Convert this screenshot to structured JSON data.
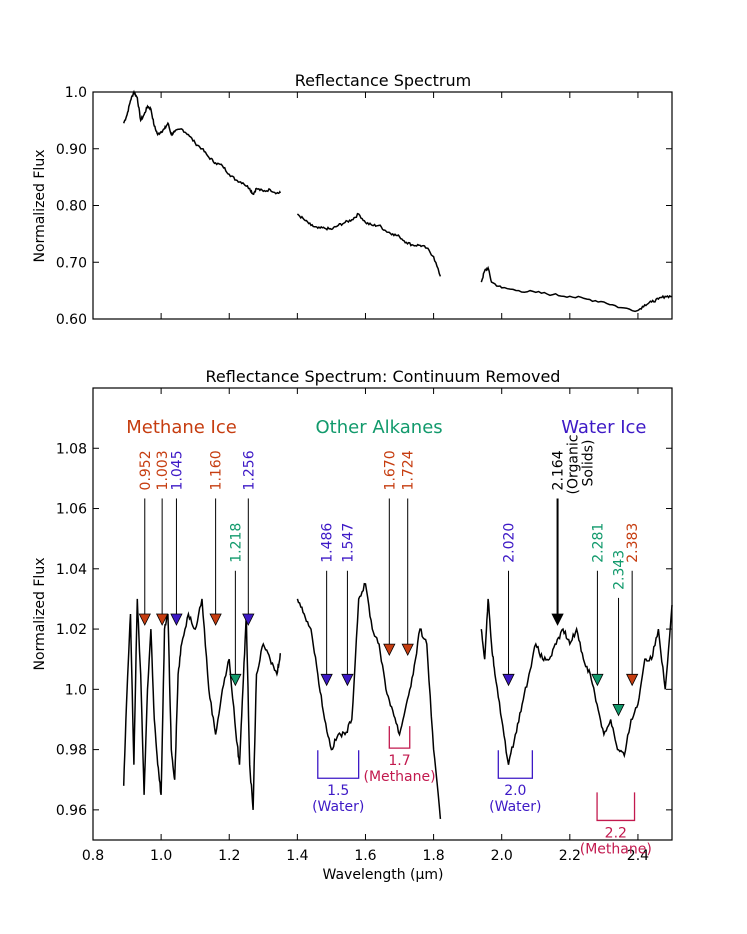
{
  "colors": {
    "methane": "#c63d10",
    "alkane": "#129a6c",
    "water": "#3d19c6",
    "organic": "#000000",
    "methane_band": "#c2194e",
    "line": "#000000"
  },
  "chart_data": [
    {
      "type": "line",
      "title": "Reflectance Spectrum",
      "xlabel": "",
      "ylabel": "Normalized Flux",
      "xlim": [
        0.8,
        2.5
      ],
      "ylim": [
        0.6,
        1.0
      ],
      "yticks": [
        "0.60",
        "0.70",
        "0.80",
        "0.90",
        "1.0"
      ],
      "ytick_values": [
        0.6,
        0.7,
        0.8,
        0.9,
        1.0
      ],
      "series": [
        {
          "name": "segment 1",
          "x": [
            0.89,
            0.9,
            0.91,
            0.92,
            0.93,
            0.94,
            0.95,
            0.96,
            0.97,
            0.98,
            0.99,
            1.0,
            1.01,
            1.02,
            1.03,
            1.04,
            1.06,
            1.08,
            1.1,
            1.12,
            1.14,
            1.16,
            1.18,
            1.2,
            1.22,
            1.24,
            1.26,
            1.27,
            1.28,
            1.3,
            1.32,
            1.34,
            1.35
          ],
          "y": [
            0.945,
            0.96,
            0.985,
            1.0,
            0.99,
            0.95,
            0.96,
            0.975,
            0.97,
            0.94,
            0.925,
            0.93,
            0.935,
            0.945,
            0.925,
            0.93,
            0.935,
            0.925,
            0.91,
            0.9,
            0.885,
            0.875,
            0.87,
            0.855,
            0.845,
            0.84,
            0.83,
            0.82,
            0.83,
            0.825,
            0.828,
            0.822,
            0.822
          ]
        },
        {
          "name": "segment 2",
          "x": [
            1.4,
            1.42,
            1.44,
            1.46,
            1.48,
            1.5,
            1.52,
            1.54,
            1.56,
            1.58,
            1.6,
            1.62,
            1.64,
            1.66,
            1.68,
            1.7,
            1.72,
            1.74,
            1.76,
            1.78,
            1.8,
            1.82
          ],
          "y": [
            0.785,
            0.775,
            0.765,
            0.76,
            0.76,
            0.758,
            0.765,
            0.77,
            0.775,
            0.785,
            0.77,
            0.765,
            0.765,
            0.755,
            0.75,
            0.745,
            0.735,
            0.73,
            0.73,
            0.725,
            0.71,
            0.675
          ]
        },
        {
          "name": "segment 3",
          "x": [
            1.94,
            1.95,
            1.96,
            1.97,
            2.0,
            2.05,
            2.1,
            2.15,
            2.2,
            2.25,
            2.3,
            2.35,
            2.4,
            2.42,
            2.44,
            2.46,
            2.48,
            2.5
          ],
          "y": [
            0.665,
            0.685,
            0.69,
            0.665,
            0.655,
            0.65,
            0.647,
            0.643,
            0.64,
            0.635,
            0.63,
            0.62,
            0.615,
            0.625,
            0.63,
            0.635,
            0.64,
            0.64
          ]
        }
      ]
    },
    {
      "type": "line",
      "title": "Reflectance Spectrum: Continuum Removed",
      "xlabel": "Wavelength (μm)",
      "ylabel": "Normalized Flux",
      "xlim": [
        0.8,
        2.5
      ],
      "ylim": [
        0.95,
        1.1
      ],
      "xticks": [
        "0.8",
        "1.0",
        "1.2",
        "1.4",
        "1.6",
        "1.8",
        "2.0",
        "2.2",
        "2.4"
      ],
      "xtick_values": [
        0.8,
        1.0,
        1.2,
        1.4,
        1.6,
        1.8,
        2.0,
        2.2,
        2.4
      ],
      "yticks": [
        "0.96",
        "0.98",
        "1.0",
        "1.02",
        "1.04",
        "1.06",
        "1.08"
      ],
      "ytick_values": [
        0.96,
        0.98,
        1.0,
        1.02,
        1.04,
        1.06,
        1.08
      ],
      "series": [
        {
          "name": "segment 1",
          "x": [
            0.89,
            0.9,
            0.91,
            0.92,
            0.93,
            0.94,
            0.95,
            0.96,
            0.97,
            0.98,
            0.99,
            1.0,
            1.01,
            1.02,
            1.03,
            1.04,
            1.05,
            1.06,
            1.08,
            1.1,
            1.12,
            1.14,
            1.16,
            1.18,
            1.2,
            1.22,
            1.23,
            1.24,
            1.25,
            1.26,
            1.27,
            1.28,
            1.3,
            1.32,
            1.34,
            1.35
          ],
          "y": [
            0.968,
            1.0,
            1.025,
            0.975,
            1.03,
            1.005,
            0.965,
            1.0,
            1.02,
            0.99,
            0.975,
            0.965,
            1.02,
            1.025,
            0.98,
            0.97,
            1.005,
            1.015,
            1.025,
            1.02,
            1.03,
            1.0,
            0.985,
            1.0,
            1.01,
            0.985,
            0.975,
            1.0,
            1.025,
            0.975,
            0.96,
            1.005,
            1.015,
            1.01,
            1.005,
            1.012
          ]
        },
        {
          "name": "segment 2",
          "x": [
            1.4,
            1.42,
            1.44,
            1.46,
            1.48,
            1.5,
            1.52,
            1.54,
            1.56,
            1.58,
            1.6,
            1.62,
            1.64,
            1.66,
            1.68,
            1.7,
            1.72,
            1.74,
            1.76,
            1.78,
            1.8,
            1.82
          ],
          "y": [
            1.03,
            1.025,
            1.02,
            1.005,
            0.99,
            0.98,
            0.985,
            0.985,
            0.99,
            1.03,
            1.035,
            1.02,
            1.015,
            1.0,
            0.993,
            0.985,
            0.995,
            1.005,
            1.02,
            1.015,
            0.98,
            0.957
          ]
        },
        {
          "name": "segment 3",
          "x": [
            1.94,
            1.95,
            1.96,
            1.97,
            1.98,
            2.0,
            2.02,
            2.04,
            2.06,
            2.08,
            2.1,
            2.12,
            2.14,
            2.16,
            2.18,
            2.2,
            2.22,
            2.24,
            2.26,
            2.28,
            2.3,
            2.32,
            2.34,
            2.36,
            2.38,
            2.4,
            2.42,
            2.44,
            2.46,
            2.48,
            2.5
          ],
          "y": [
            1.02,
            1.01,
            1.03,
            1.015,
            1.005,
            0.99,
            0.975,
            0.985,
            0.995,
            1.005,
            1.015,
            1.01,
            1.01,
            1.015,
            1.02,
            1.015,
            1.02,
            1.01,
            1.005,
            0.995,
            0.985,
            0.99,
            0.98,
            0.978,
            0.99,
            0.995,
            1.01,
            1.01,
            1.02,
            1.0,
            1.028
          ]
        }
      ],
      "group_labels": [
        {
          "text": "Methane Ice",
          "x": 1.06,
          "y": 1.085,
          "color_key": "methane"
        },
        {
          "text": "Other Alkanes",
          "x": 1.64,
          "y": 1.085,
          "color_key": "alkane"
        },
        {
          "text": "Water Ice",
          "x": 2.3,
          "y": 1.085,
          "color_key": "water"
        }
      ],
      "markers": [
        {
          "label": "0.952",
          "x": 0.952,
          "y": 1.023,
          "label_y": 1.066,
          "color_key": "methane"
        },
        {
          "label": "1.003",
          "x": 1.003,
          "y": 1.023,
          "label_y": 1.066,
          "color_key": "methane"
        },
        {
          "label": "1.045",
          "x": 1.045,
          "y": 1.023,
          "label_y": 1.066,
          "color_key": "water"
        },
        {
          "label": "1.160",
          "x": 1.16,
          "y": 1.023,
          "label_y": 1.066,
          "color_key": "methane"
        },
        {
          "label": "1.218",
          "x": 1.218,
          "y": 1.003,
          "label_y": 1.042,
          "color_key": "alkane"
        },
        {
          "label": "1.256",
          "x": 1.256,
          "y": 1.023,
          "label_y": 1.066,
          "color_key": "water"
        },
        {
          "label": "1.486",
          "x": 1.486,
          "y": 1.003,
          "label_y": 1.042,
          "color_key": "water"
        },
        {
          "label": "1.547",
          "x": 1.547,
          "y": 1.003,
          "label_y": 1.042,
          "color_key": "water"
        },
        {
          "label": "1.670",
          "x": 1.67,
          "y": 1.013,
          "label_y": 1.066,
          "color_key": "methane"
        },
        {
          "label": "1.724",
          "x": 1.724,
          "y": 1.013,
          "label_y": 1.066,
          "color_key": "methane"
        },
        {
          "label": "2.020",
          "x": 2.02,
          "y": 1.003,
          "label_y": 1.042,
          "color_key": "water"
        },
        {
          "label": "2.164",
          "x": 2.164,
          "y": 1.023,
          "label_y": 1.066,
          "color_key": "organic"
        },
        {
          "label": "2.281",
          "x": 2.281,
          "y": 1.003,
          "label_y": 1.042,
          "color_key": "alkane"
        },
        {
          "label": "2.343",
          "x": 2.343,
          "y": 0.993,
          "label_y": 1.033,
          "color_key": "alkane"
        },
        {
          "label": "2.383",
          "x": 2.383,
          "y": 1.003,
          "label_y": 1.042,
          "color_key": "methane"
        }
      ],
      "organic_note": [
        "(Organic",
        "Solids)"
      ],
      "bands": [
        {
          "lines": [
            "1.5",
            "(Water)"
          ],
          "x0": 1.46,
          "x1": 1.58,
          "color_key": "water",
          "pos": "lower"
        },
        {
          "lines": [
            "1.7",
            "(Methane)"
          ],
          "x0": 1.67,
          "x1": 1.73,
          "color_key": "methane_band",
          "pos": "upper"
        },
        {
          "lines": [
            "2.0",
            "(Water)"
          ],
          "x0": 1.99,
          "x1": 2.09,
          "color_key": "water",
          "pos": "lower"
        },
        {
          "lines": [
            "2.2",
            "(Methane)"
          ],
          "x0": 2.28,
          "x1": 2.39,
          "color_key": "methane_band",
          "pos": "lowest"
        }
      ]
    }
  ]
}
